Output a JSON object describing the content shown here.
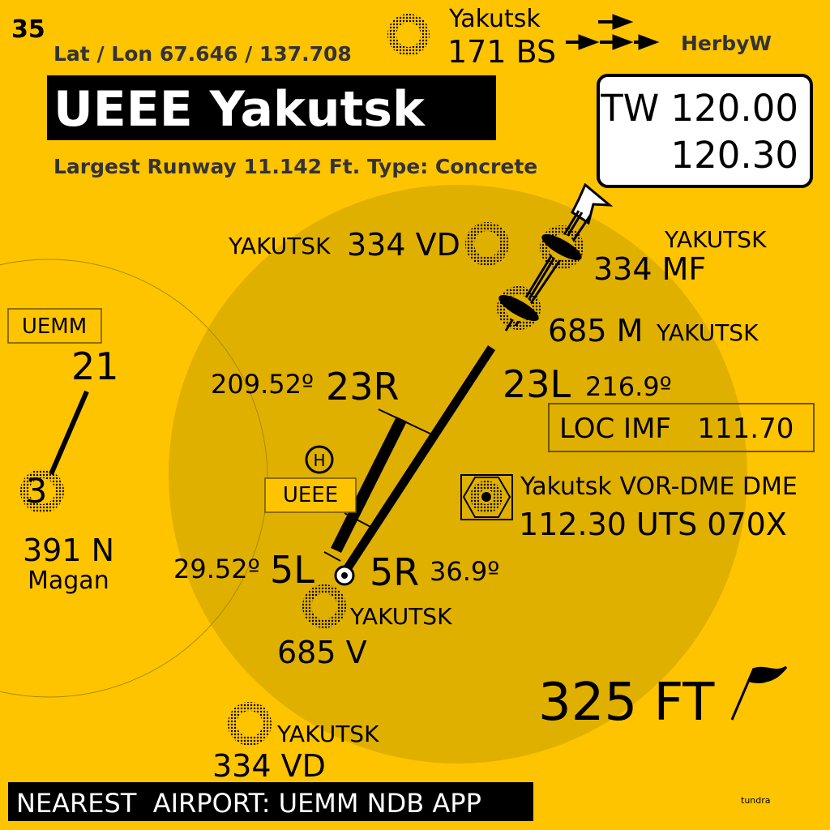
{
  "page_number": "35",
  "lat_lon": "Lat / Lon 67.646 / 137.708",
  "airport_title": "UEEE Yakutsk",
  "runway_info": "Largest Runway 11.142 Ft. Type: Concrete",
  "bs_ndb": {
    "name": "Yakutsk",
    "freq": "171 BS"
  },
  "author": "HerbyW",
  "tower": {
    "line1": "TW 120.00",
    "line2": "120.30"
  },
  "ndb_vd_north": {
    "name": "YAKUTSK",
    "freq": "334 VD"
  },
  "ndb_mf": {
    "name": "YAKUTSK",
    "freq": "334 MF"
  },
  "ndb_m": {
    "freq": "685 M",
    "name": "YAKUTSK"
  },
  "rw_23r": {
    "heading": "209.52º",
    "id": "23R"
  },
  "rw_23l": {
    "id": "23L",
    "heading": "216.9º"
  },
  "rw_5l": {
    "heading": "29.52º",
    "id": "5L"
  },
  "rw_5r": {
    "id": "5R",
    "heading": "36.9º"
  },
  "loc": "LOC IMF   111.70",
  "vor": {
    "line1": "Yakutsk VOR-DME DME",
    "line2": "112.30 UTS 070X"
  },
  "heli_letter": "H",
  "ueee_label": "UEEE",
  "uemm": {
    "label": "UEMM",
    "runway_top": "21",
    "runway_bottom": "3",
    "ndb_freq": "391 N",
    "ndb_name": "Magan"
  },
  "ndb_v": {
    "name": "YAKUTSK",
    "freq": "685 V"
  },
  "ndb_vd_south": {
    "name": "YAKUTSK",
    "freq": "334 VD"
  },
  "elevation": "325 FT",
  "nearest_airport": "NEAREST  AIRPORT: UEMM NDB APP",
  "credit": "tundra",
  "colors": {
    "background": "#ffc400",
    "range_circle": "#e0b000",
    "ink": "#000000",
    "label_text": "#333333"
  }
}
